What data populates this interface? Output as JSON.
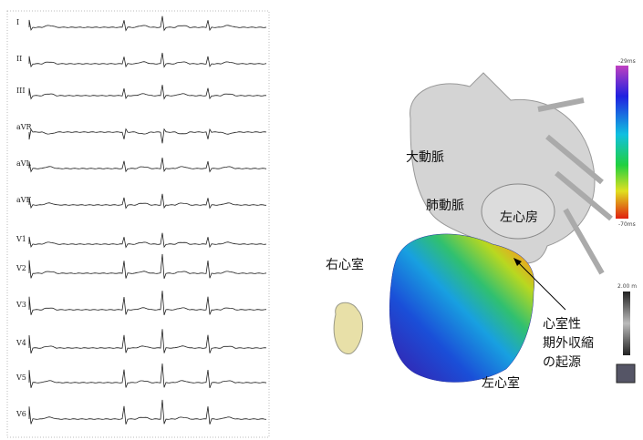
{
  "ecg": {
    "leads": [
      "I",
      "II",
      "III",
      "aVR",
      "aVL",
      "aVF",
      "V1",
      "V2",
      "V3",
      "V4",
      "V5",
      "V6"
    ]
  },
  "labels": {
    "aorta": "大動脈",
    "pulmonary_artery": "肺動脈",
    "left_atrium": "左心房",
    "right_ventricle": "右心室",
    "origin": [
      "心室性",
      "期外収縮",
      "の起源"
    ],
    "left_ventricle": "左心室"
  },
  "color_scale": {
    "top": "-29ms",
    "bottom": "-70ms"
  },
  "scale_bar": "2.00 m"
}
